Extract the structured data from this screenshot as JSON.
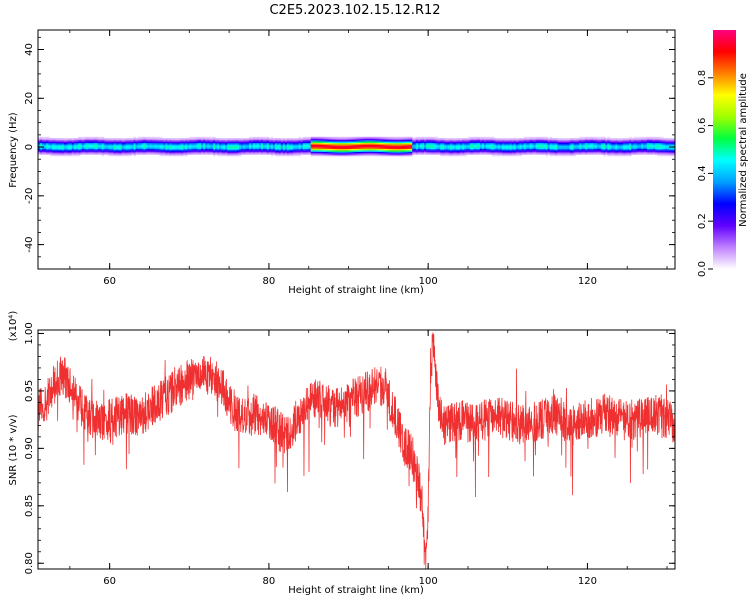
{
  "title": "C2E5.2023.102.15.12.R12",
  "chart_data": [
    {
      "type": "heatmap",
      "xlabel": "Height of straight line (km)",
      "ylabel": "Frequency (Hz)",
      "xlim": [
        51,
        131
      ],
      "ylim": [
        -50,
        48
      ],
      "xticks": [
        60,
        80,
        100,
        120
      ],
      "yticks": [
        40,
        20,
        0,
        -20,
        -40
      ],
      "colorbar": {
        "label": "Normalized spectral amplitude",
        "range": [
          0.0,
          1.0
        ],
        "ticks": [
          0.0,
          0.2,
          0.4,
          0.6,
          0.8
        ],
        "tick_labels": [
          "0.0",
          "0.2",
          "0.4",
          "0.6",
          "0.8"
        ],
        "colormap": [
          "#ffffff",
          "#c080ff",
          "#6000ff",
          "#0000ff",
          "#00a0ff",
          "#00ffff",
          "#00ff40",
          "#a0ff00",
          "#ffff00",
          "#ff8000",
          "#ff0000",
          "#ff0080"
        ]
      },
      "signal": {
        "center_frequency_hz": 0,
        "peak_x_range_km": [
          85,
          98
        ],
        "half_width_hz": 2.5,
        "base_amplitude": 0.45,
        "peak_amplitude": 0.95
      }
    },
    {
      "type": "line",
      "xlabel": "Height of straight line (km)",
      "ylabel": "SNR (10 * v/v)",
      "yscale_label": "(x10⁴)",
      "xlim": [
        51,
        131
      ],
      "ylim": [
        0.795,
        1.003
      ],
      "xticks": [
        60,
        80,
        100,
        120
      ],
      "yticks": [
        0.8,
        0.85,
        0.9,
        0.95,
        1.0
      ],
      "ytick_labels": [
        "0.80",
        "0.85",
        "0.90",
        "0.95",
        "1.00"
      ],
      "series": [
        {
          "color": "#f03030",
          "x": [
            51,
            52,
            53,
            54,
            55,
            56,
            57,
            58,
            60,
            62,
            64,
            66,
            68,
            70,
            72,
            74,
            75,
            76,
            77,
            78,
            80,
            82,
            84,
            86,
            88,
            90,
            92,
            94,
            95,
            96,
            97,
            98,
            98.7,
            99.2,
            99.6,
            100,
            100.3,
            100.7,
            101.2,
            102,
            104,
            106,
            108,
            110,
            112,
            114,
            116,
            118,
            120,
            122,
            124,
            126,
            128,
            130,
            131
          ],
          "y": [
            0.935,
            0.94,
            0.955,
            0.965,
            0.955,
            0.94,
            0.93,
            0.925,
            0.925,
            0.93,
            0.928,
            0.94,
            0.95,
            0.96,
            0.965,
            0.955,
            0.94,
            0.93,
            0.925,
            0.93,
            0.925,
            0.91,
            0.93,
            0.945,
            0.935,
            0.94,
            0.948,
            0.955,
            0.945,
            0.925,
            0.905,
            0.895,
            0.875,
            0.855,
            0.8,
            0.84,
            0.97,
            0.995,
            0.94,
            0.92,
            0.925,
            0.92,
            0.93,
            0.925,
            0.92,
            0.925,
            0.93,
            0.92,
            0.925,
            0.93,
            0.925,
            0.925,
            0.93,
            0.925,
            0.92
          ],
          "noise_amplitude": 0.018
        }
      ]
    }
  ]
}
